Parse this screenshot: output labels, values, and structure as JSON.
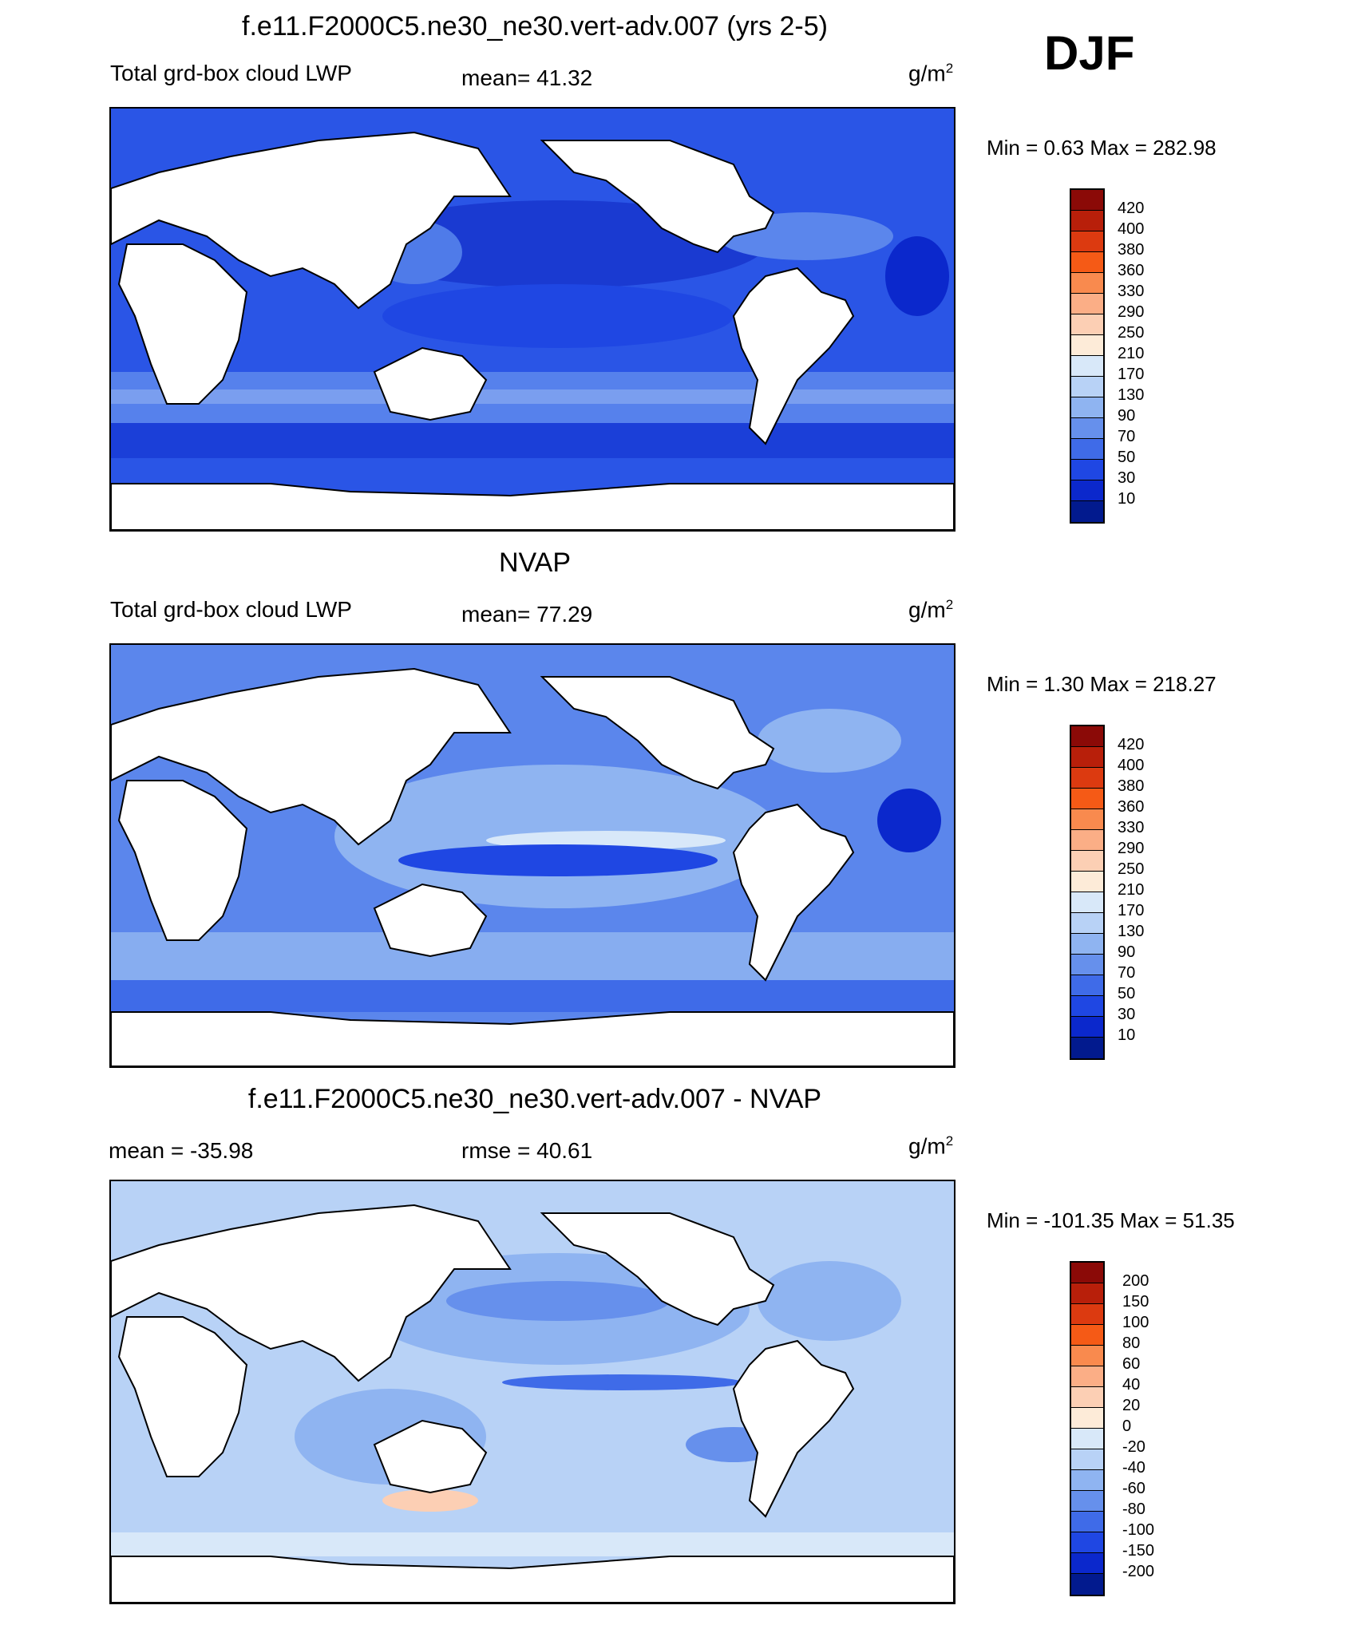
{
  "season": "DJF",
  "panels": [
    {
      "title": "f.e11.F2000C5.ne30_ne30.vert-adv.007 (yrs 2-5)",
      "left_label": "Total grd-box cloud LWP",
      "center_label": "mean=  41.32",
      "units": "g/m",
      "units_sup": "2",
      "minmax": "Min =    0.63 Max = 282.98",
      "levels": [
        "420",
        "400",
        "380",
        "360",
        "330",
        "290",
        "250",
        "210",
        "170",
        "130",
        "90",
        "70",
        "50",
        "30",
        "10"
      ],
      "colors": [
        "#8b0a07",
        "#b81f0a",
        "#dc3a10",
        "#f55a16",
        "#f98a4e",
        "#fbae86",
        "#fccfb4",
        "#fdebd8",
        "#d8e8f9",
        "#b8d2f6",
        "#8fb4f1",
        "#6690ec",
        "#3f6be8",
        "#1f47e3",
        "#0b28cc",
        "#021a8e"
      ]
    },
    {
      "title": "NVAP",
      "left_label": "Total grd-box cloud LWP",
      "center_label": "mean=  77.29",
      "units": "g/m",
      "units_sup": "2",
      "minmax": "Min =    1.30 Max = 218.27",
      "levels": [
        "420",
        "400",
        "380",
        "360",
        "330",
        "290",
        "250",
        "210",
        "170",
        "130",
        "90",
        "70",
        "50",
        "30",
        "10"
      ],
      "colors": [
        "#8b0a07",
        "#b81f0a",
        "#dc3a10",
        "#f55a16",
        "#f98a4e",
        "#fbae86",
        "#fccfb4",
        "#fdebd8",
        "#d8e8f9",
        "#b8d2f6",
        "#8fb4f1",
        "#6690ec",
        "#3f6be8",
        "#1f47e3",
        "#0b28cc",
        "#021a8e"
      ]
    },
    {
      "title": "f.e11.F2000C5.ne30_ne30.vert-adv.007 - NVAP",
      "left_label": "mean = -35.98",
      "center_label": "rmse =  40.61",
      "units": "g/m",
      "units_sup": "2",
      "minmax": "Min = -101.35 Max =  51.35",
      "levels": [
        "200",
        "150",
        "100",
        "80",
        "60",
        "40",
        "20",
        "0",
        "-20",
        "-40",
        "-60",
        "-80",
        "-100",
        "-150",
        "-200"
      ],
      "colors": [
        "#8b0a07",
        "#b81f0a",
        "#dc3a10",
        "#f55a16",
        "#f98a4e",
        "#fbae86",
        "#fccfb4",
        "#fdebd8",
        "#d8e8f9",
        "#b8d2f6",
        "#8fb4f1",
        "#6690ec",
        "#3f6be8",
        "#1f47e3",
        "#0b28cc",
        "#021a8e"
      ]
    }
  ]
}
